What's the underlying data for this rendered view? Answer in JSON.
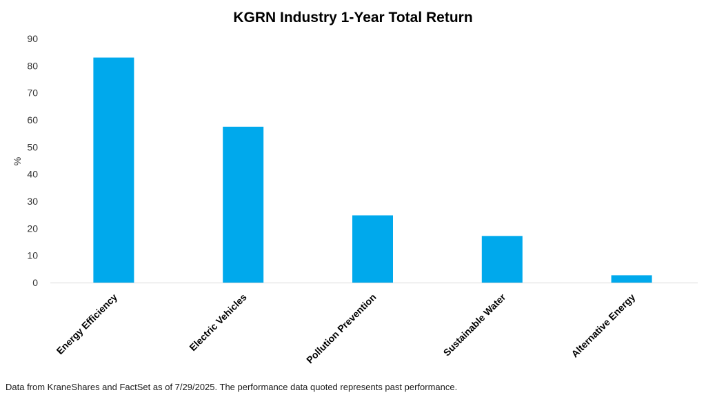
{
  "chart_data": {
    "type": "bar",
    "title": "KGRN Industry 1-Year Total Return",
    "xlabel": "",
    "ylabel": "%",
    "categories": [
      "Energy Efficiency",
      "Electric Vehicles",
      "Pollution Prevention",
      "Sustainable Water",
      "Alternative Energy"
    ],
    "values": [
      83.0,
      57.5,
      24.8,
      17.2,
      2.7
    ],
    "ylim": [
      0,
      90
    ],
    "yticks": [
      "0",
      "10",
      "20",
      "30",
      "40",
      "50",
      "60",
      "70",
      "80",
      "90"
    ],
    "bar_color": "#00a9ec",
    "grid": false,
    "legend": "none"
  },
  "footnote": "Data from KraneShares and FactSet as of 7/29/2025. The performance data quoted represents past performance."
}
